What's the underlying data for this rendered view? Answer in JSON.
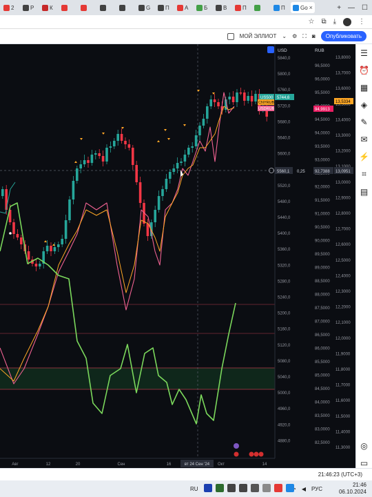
{
  "browser": {
    "tabs": [
      {
        "label": "2",
        "color": "#e53935"
      },
      {
        "label": "P",
        "color": "#424242"
      },
      {
        "label": "К",
        "color": "#c62828"
      },
      {
        "label": "",
        "color": "#e53935"
      },
      {
        "label": "",
        "color": "#e53935"
      },
      {
        "label": "",
        "color": "#424242"
      },
      {
        "label": "",
        "color": "#424242"
      },
      {
        "label": "G",
        "color": "#424242"
      },
      {
        "label": "П",
        "color": "#424242"
      },
      {
        "label": "А",
        "color": "#e53935"
      },
      {
        "label": "Б",
        "color": "#43a047"
      },
      {
        "label": "В",
        "color": "#424242"
      },
      {
        "label": "П",
        "color": "#e53935"
      },
      {
        "label": "",
        "color": "#43a047"
      },
      {
        "label": "П",
        "color": "#1e88e5"
      },
      {
        "label": "Go",
        "color": "#1e88e5",
        "active": true
      }
    ],
    "new_tab": "+",
    "win_controls": [
      "—",
      "☐"
    ]
  },
  "tv_header": {
    "layout_name": "МОЙ ЭЛЛИОТ",
    "publish_label": "Опубликовать"
  },
  "scales": {
    "left_currency": "USD",
    "right_currency": "RUB",
    "mid_values": [
      "96,5000",
      "96,0000",
      "95,5000",
      "95,0000",
      "94,5000",
      "94,0000",
      "93,5000",
      "93,0000",
      "92,5000",
      "92,0000",
      "91,5000",
      "91,0000",
      "90,5000",
      "90,0000",
      "89,5000",
      "89,0000",
      "88,5000",
      "88,0000",
      "87,5000",
      "87,0000",
      "86,5000",
      "86,0000",
      "85,5000",
      "85,0000",
      "84,5000",
      "84,0000",
      "83,5000",
      "83,0000",
      "82,5000"
    ],
    "spx_values": [
      "5840,0",
      "5800,0",
      "5760,0",
      "5720,0",
      "5680,0",
      "5640,0",
      "5600,0",
      "5560,0",
      "5520,0",
      "5480,0",
      "5440,0",
      "5400,0",
      "5360,0",
      "5320,0",
      "5280,0",
      "5240,0",
      "5200,0",
      "5160,0",
      "5120,0",
      "5080,0",
      "5040,0",
      "5000,0",
      "4960,0",
      "4920,0",
      "4880,0"
    ],
    "rub_values": [
      "13,8000",
      "13,7000",
      "13,6000",
      "13,5000",
      "13,4000",
      "13,3000",
      "13,2000",
      "13,1000",
      "13,0000",
      "12,9000",
      "12,8000",
      "12,7000",
      "12,6000",
      "12,5000",
      "12,4000",
      "12,3000",
      "12,2000",
      "12,1000",
      "12,0000",
      "11,9000",
      "11,8000",
      "11,7000",
      "11,6000",
      "11,5000",
      "11,4000",
      "11,3000"
    ],
    "time_labels": [
      "Авг",
      "12",
      "20",
      "Сен",
      "16",
      "вт 24 Сен '24",
      "Окт",
      "14"
    ]
  },
  "labels": {
    "us500_name": "US500",
    "us500_value": "5744,6",
    "cny_name": "CNYRUB",
    "cny_value": "13,5334",
    "usd_name": "USDRUB",
    "usd_value": "94,9913",
    "cross_price": "5560,1",
    "cross_mid_a": "0,25",
    "cross_mid_b": "92,7388",
    "cross_rub": "13,0951"
  },
  "colors": {
    "up": "#26a69a",
    "down": "#f23645",
    "usdrub": "#f06292",
    "cnyrub": "#ffa726",
    "oscillator": "#7bd85c",
    "accent": "#2962ff"
  },
  "status": {
    "time": "21:46:23 (UTC+3)"
  },
  "taskbar": {
    "lang": "RU",
    "kb": "РУС",
    "time": "21:46",
    "date": "06.10.2024"
  }
}
